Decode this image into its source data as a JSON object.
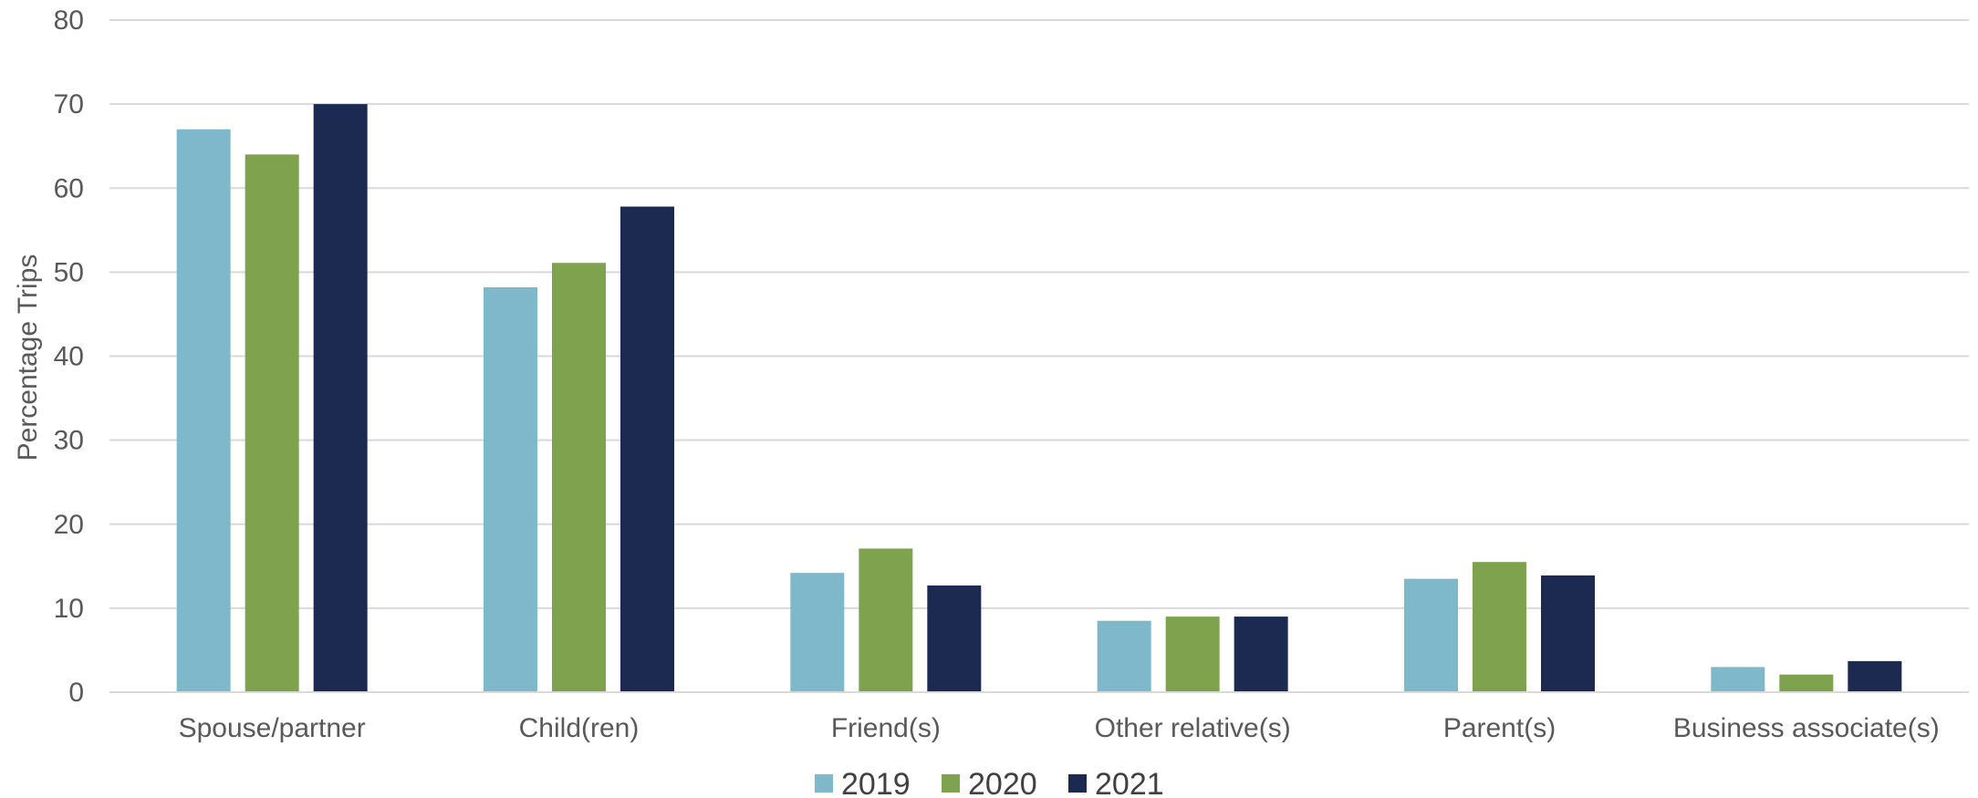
{
  "chart_data": {
    "type": "bar",
    "title": "",
    "xlabel": "",
    "ylabel": "Percentage Trips",
    "ylim": [
      0,
      80
    ],
    "yticks": [
      0,
      10,
      20,
      30,
      40,
      50,
      60,
      70,
      80
    ],
    "grid": true,
    "legend_position": "bottom",
    "categories": [
      "Spouse/partner",
      "Child(ren)",
      "Friend(s)",
      "Other relative(s)",
      "Parent(s)",
      "Business associate(s)"
    ],
    "series": [
      {
        "name": "2019",
        "color": "#7fb8ca",
        "values": [
          67,
          48.2,
          14.2,
          8.5,
          13.5,
          3
        ]
      },
      {
        "name": "2020",
        "color": "#7ea24d",
        "values": [
          64,
          51.1,
          17.1,
          9,
          15.5,
          2.1
        ]
      },
      {
        "name": "2021",
        "color": "#1c2a52",
        "values": [
          70,
          57.8,
          12.7,
          9,
          13.9,
          3.7
        ]
      }
    ]
  }
}
